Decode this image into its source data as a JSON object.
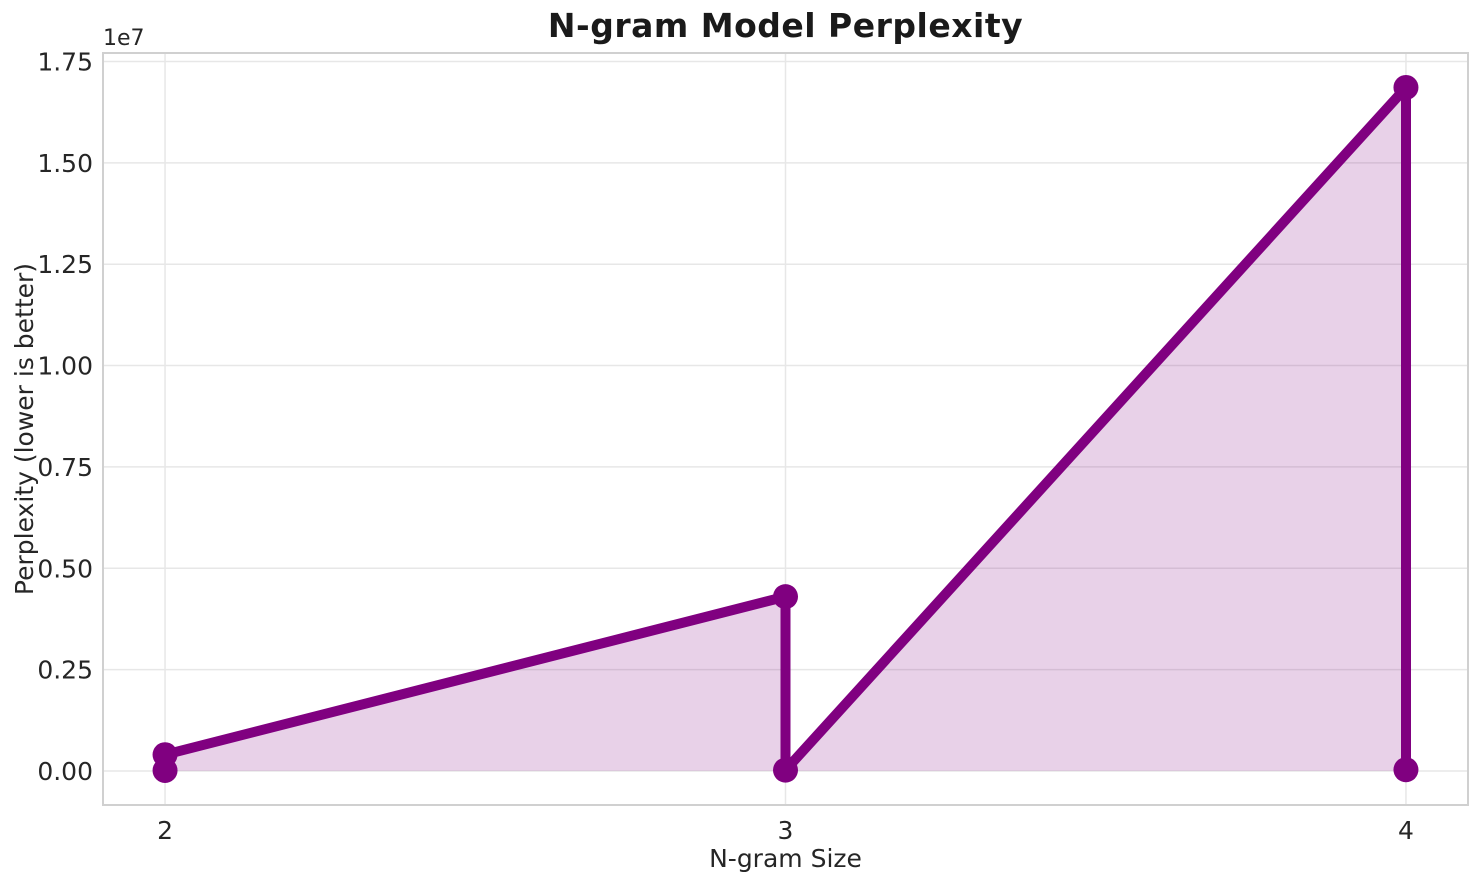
{
  "chart_data": {
    "type": "line",
    "title": "N-gram Model Perplexity",
    "xlabel": "N-gram Size",
    "ylabel": "Perplexity (lower is better)",
    "y_offset_label": "1e7",
    "x": [
      2,
      2,
      3,
      3,
      4,
      4
    ],
    "y": [
      12000,
      400000,
      4300000,
      20000,
      16860000,
      30000
    ],
    "baseline": 0,
    "x_ticks": {
      "values": [
        2,
        3,
        4
      ],
      "labels": [
        "2",
        "3",
        "4"
      ]
    },
    "y_ticks": {
      "values": [
        0,
        2500000,
        5000000,
        7500000,
        10000000,
        12500000,
        15000000,
        17500000
      ],
      "labels": [
        "0.00",
        "0.25",
        "0.50",
        "0.75",
        "1.00",
        "1.25",
        "1.50",
        "1.75"
      ]
    },
    "xlim": [
      1.9,
      4.1
    ],
    "ylim": [
      -840000,
      17710000
    ],
    "grid": true,
    "legend": false,
    "line_color": "#800080",
    "fill_color": "rgba(128,0,128,0.18)",
    "grid_color": "#e7e7e7",
    "spine_color": "#d0d0d0",
    "text_color": "#262626"
  }
}
